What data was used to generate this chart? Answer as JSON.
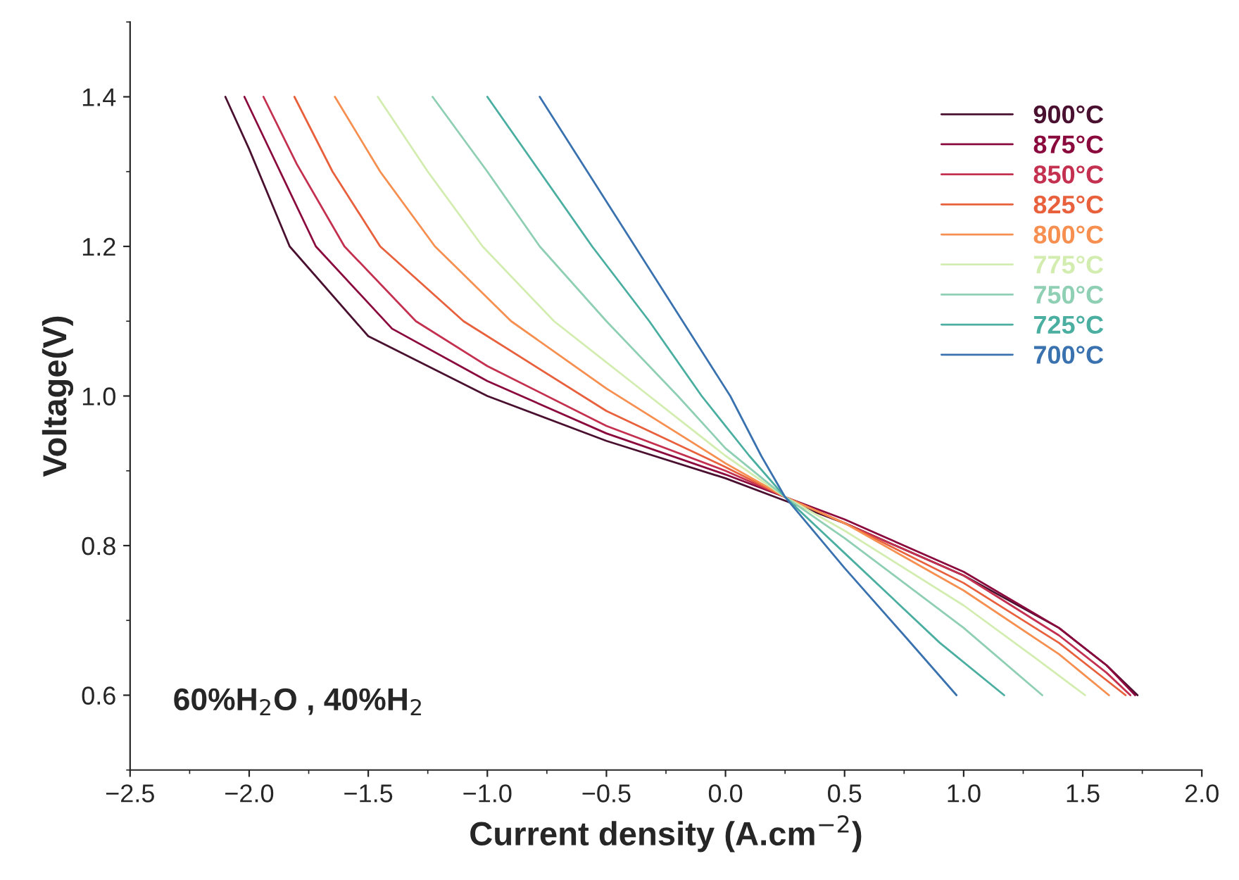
{
  "chart_data": {
    "type": "line",
    "xlabel": "Current density (A.cm$^{−2}$)",
    "ylabel": "Voltage(V)",
    "xlim": [
      -2.5,
      2.0
    ],
    "ylim": [
      0.5,
      1.5
    ],
    "xticks": [
      {
        "value": -2.5,
        "label": "−2.5"
      },
      {
        "value": -2.0,
        "label": "−2.0"
      },
      {
        "value": -1.5,
        "label": "−1.5"
      },
      {
        "value": -1.0,
        "label": "−1.0"
      },
      {
        "value": -0.5,
        "label": "−0.5"
      },
      {
        "value": 0,
        "label": "0.0"
      },
      0.5,
      {
        "value": 1,
        "label": "1.0"
      },
      1.5,
      {
        "value": 2,
        "label": "2.0"
      }
    ],
    "yticks": [
      0.6,
      0.8,
      {
        "value": 1,
        "label": "1.0"
      },
      1.2,
      1.4
    ],
    "grid": false,
    "legend": "top right",
    "marker": "none",
    "line_style": "solid",
    "annotations": [
      {
        "text": "60%H$_{2}$O , 40%H$_{2}$"
      }
    ],
    "series": [
      {
        "name": "900°C",
        "color": "#4a1030",
        "x": [
          -2.1,
          -2.0,
          -1.83,
          -1.5,
          -1.0,
          -0.5,
          0,
          0.25,
          0.5,
          1.0,
          1.4,
          1.6,
          1.73
        ],
        "values": [
          1.4,
          1.33,
          1.2,
          1.08,
          1.0,
          0.94,
          0.89,
          0.86,
          0.83,
          0.76,
          0.69,
          0.64,
          0.6
        ]
      },
      {
        "name": "875°C",
        "color": "#8b0a3e",
        "x": [
          -2.02,
          -1.9,
          -1.72,
          -1.4,
          -1.0,
          -0.5,
          0,
          0.25,
          0.5,
          1.0,
          1.4,
          1.6,
          1.72
        ],
        "values": [
          1.4,
          1.32,
          1.2,
          1.09,
          1.02,
          0.95,
          0.895,
          0.865,
          0.835,
          0.765,
          0.69,
          0.64,
          0.6
        ]
      },
      {
        "name": "850°C",
        "color": "#c4304f",
        "x": [
          -1.94,
          -1.8,
          -1.6,
          -1.3,
          -1.0,
          -0.5,
          0,
          0.25,
          0.5,
          1.0,
          1.4,
          1.6,
          1.7
        ],
        "values": [
          1.4,
          1.31,
          1.2,
          1.1,
          1.04,
          0.96,
          0.9,
          0.865,
          0.83,
          0.76,
          0.68,
          0.63,
          0.6
        ]
      },
      {
        "name": "825°C",
        "color": "#e8603c",
        "x": [
          -1.81,
          -1.65,
          -1.45,
          -1.1,
          -0.5,
          0,
          0.25,
          0.5,
          1.0,
          1.4,
          1.68
        ],
        "values": [
          1.4,
          1.3,
          1.2,
          1.1,
          0.98,
          0.905,
          0.865,
          0.83,
          0.75,
          0.67,
          0.6
        ]
      },
      {
        "name": "800°C",
        "color": "#f68f4f",
        "x": [
          -1.64,
          -1.45,
          -1.22,
          -0.9,
          -0.5,
          0,
          0.25,
          0.5,
          1.0,
          1.4,
          1.61
        ],
        "values": [
          1.4,
          1.3,
          1.2,
          1.1,
          1.01,
          0.91,
          0.865,
          0.83,
          0.74,
          0.655,
          0.6
        ]
      },
      {
        "name": "775°C",
        "color": "#d3edb0",
        "x": [
          -1.46,
          -1.25,
          -1.02,
          -0.72,
          -0.4,
          0,
          0.25,
          0.5,
          1.0,
          1.3,
          1.51
        ],
        "values": [
          1.4,
          1.3,
          1.2,
          1.1,
          1.02,
          0.92,
          0.865,
          0.82,
          0.72,
          0.65,
          0.6
        ]
      },
      {
        "name": "750°C",
        "color": "#8fcfb4",
        "x": [
          -1.23,
          -1.0,
          -0.78,
          -0.5,
          -0.2,
          0,
          0.25,
          0.5,
          1.0,
          1.33
        ],
        "values": [
          1.4,
          1.3,
          1.2,
          1.1,
          1.0,
          0.93,
          0.865,
          0.81,
          0.69,
          0.6
        ]
      },
      {
        "name": "725°C",
        "color": "#4aaea0",
        "x": [
          -1.0,
          -0.78,
          -0.56,
          -0.32,
          -0.1,
          0.1,
          0.25,
          0.5,
          0.9,
          1.17
        ],
        "values": [
          1.4,
          1.3,
          1.2,
          1.1,
          1.0,
          0.92,
          0.865,
          0.79,
          0.67,
          0.6
        ]
      },
      {
        "name": "700°C",
        "color": "#3a72b0",
        "x": [
          -0.78,
          -0.58,
          -0.38,
          -0.18,
          0.02,
          0.15,
          0.25,
          0.5,
          0.75,
          0.97
        ],
        "values": [
          1.4,
          1.3,
          1.2,
          1.1,
          1.0,
          0.92,
          0.865,
          0.77,
          0.68,
          0.6
        ]
      }
    ]
  }
}
